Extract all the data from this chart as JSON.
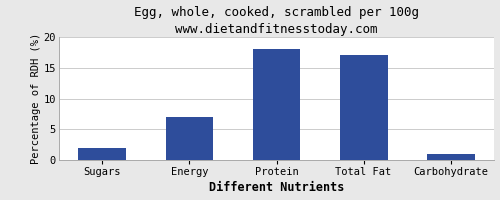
{
  "title": "Egg, whole, cooked, scrambled per 100g",
  "subtitle": "www.dietandfitnesstoday.com",
  "xlabel": "Different Nutrients",
  "ylabel": "Percentage of RDH (%)",
  "categories": [
    "Sugars",
    "Energy",
    "Protein",
    "Total Fat",
    "Carbohydrate"
  ],
  "values": [
    2,
    7,
    18,
    17,
    1
  ],
  "bar_color": "#2e4d9b",
  "ylim": [
    0,
    20
  ],
  "yticks": [
    0,
    5,
    10,
    15,
    20
  ],
  "fig_background": "#e8e8e8",
  "plot_background": "#ffffff",
  "title_fontsize": 9,
  "subtitle_fontsize": 8.5,
  "xlabel_fontsize": 8.5,
  "ylabel_fontsize": 7.5,
  "tick_fontsize": 7.5,
  "bar_width": 0.55
}
